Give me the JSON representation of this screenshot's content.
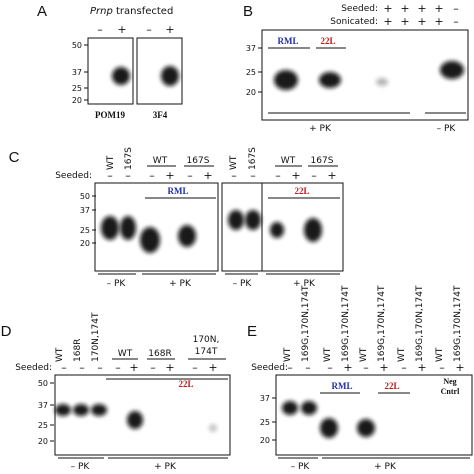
{
  "panel_a": {
    "label": "A",
    "title_italic": "Prnp",
    "title": " transfected",
    "lanes": [
      "–",
      "+",
      "–",
      "+"
    ],
    "markers": [
      "50",
      "37",
      "25",
      "20"
    ],
    "blots": [
      "POM19",
      "3F4"
    ]
  },
  "panel_b": {
    "label": "B",
    "seeded_label": "Seeded:",
    "seeded": [
      "+",
      "+",
      "+",
      "+",
      "–"
    ],
    "sonicated_label": "Sonicated:",
    "sonicated": [
      "+",
      "+",
      "+",
      "+",
      "–"
    ],
    "strains": [
      "RML",
      "22L"
    ],
    "markers": [
      "37",
      "25",
      "20"
    ],
    "treatments": [
      "+ PK",
      "– PK"
    ]
  },
  "panel_c": {
    "label": "C",
    "lanes_left": [
      "WT",
      "167S"
    ],
    "groups_left": [
      "WT",
      "167S"
    ],
    "seeded_label": "Seeded:",
    "seeded_left": [
      "–",
      "–",
      "–",
      "+",
      "–",
      "+"
    ],
    "strain_left": "RML",
    "treatments_left": [
      "– PK",
      "+ PK"
    ],
    "lanes_right": [
      "WT",
      "167S"
    ],
    "groups_right": [
      "WT",
      "167S"
    ],
    "seeded_right": [
      "–",
      "–",
      "–",
      "+",
      "–",
      "+"
    ],
    "strain_right": "22L",
    "treatments_right": [
      "– PK",
      "+ PK"
    ],
    "markers": [
      "50",
      "37",
      "25",
      "20"
    ]
  },
  "panel_d": {
    "label": "D",
    "lanes": [
      "WT",
      "168R",
      "170N,174T"
    ],
    "groups": [
      "WT",
      "168R"
    ],
    "group_last": [
      "170N,",
      "174T"
    ],
    "seeded_label": "Seeded:",
    "seeded": [
      "–",
      "–",
      "–",
      "–",
      "+",
      "–",
      "+",
      "–",
      "+"
    ],
    "strain": "22L",
    "markers": [
      "50",
      "37",
      "25",
      "20"
    ],
    "treatments": [
      "– PK",
      "+ PK"
    ]
  },
  "panel_e": {
    "label": "E",
    "lanes": [
      "WT",
      "169G,170N,174T",
      "WT",
      "169G,170N,174T",
      "WT",
      "169G,170N,174T",
      "WT",
      "169G,170N,174T",
      "WT",
      "169G,170N,174T"
    ],
    "seeded_label": "Seeded:",
    "seeded": [
      "–",
      "–",
      "–",
      "+",
      "–",
      "+",
      "–",
      "+",
      "–",
      "+"
    ],
    "strains": [
      "RML",
      "22L"
    ],
    "control": [
      "Neg",
      "Cntrl"
    ],
    "markers": [
      "37",
      "25",
      "20"
    ],
    "treatments": [
      "– PK",
      "+ PK"
    ]
  }
}
